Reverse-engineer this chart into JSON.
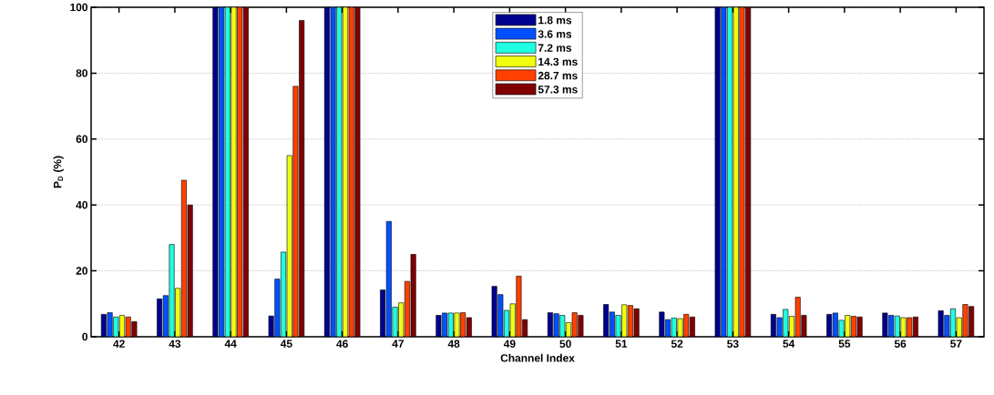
{
  "chart_data": {
    "type": "bar",
    "xlabel": "Channel Index",
    "ylabel": "P$_{D}$ (%)",
    "categories": [
      "42",
      "43",
      "44",
      "45",
      "46",
      "47",
      "48",
      "49",
      "50",
      "51",
      "52",
      "53",
      "54",
      "55",
      "56",
      "57"
    ],
    "series": [
      {
        "name": "1.8 ms",
        "color": "#00008f",
        "values": [
          6.8,
          11.5,
          100,
          6.3,
          100,
          14.2,
          6.5,
          15.3,
          7.3,
          9.8,
          7.5,
          100,
          6.8,
          6.8,
          7.2,
          7.9
        ]
      },
      {
        "name": "3.6 ms",
        "color": "#0050ff",
        "values": [
          7.3,
          12.5,
          100,
          17.5,
          100,
          35,
          7.2,
          12.8,
          7,
          7.5,
          5.2,
          100,
          5.8,
          7.2,
          6.5,
          6.5
        ]
      },
      {
        "name": "7.2 ms",
        "color": "#20ffe0",
        "values": [
          6,
          28,
          100,
          25.7,
          100,
          9,
          7.2,
          8,
          6.5,
          6.5,
          5.7,
          100,
          8.3,
          5,
          6.3,
          8.5
        ]
      },
      {
        "name": "14.3 ms",
        "color": "#f0ff10",
        "values": [
          6.5,
          14.7,
          100,
          55,
          100,
          10.3,
          7.2,
          10,
          4.3,
          9.7,
          5.5,
          100,
          6.2,
          6.5,
          5.8,
          5.8
        ]
      },
      {
        "name": "28.7 ms",
        "color": "#ff4000",
        "values": [
          6,
          47.5,
          100,
          76,
          100,
          16.8,
          7.3,
          18.4,
          7.3,
          9.5,
          6.8,
          100,
          12,
          6.2,
          5.8,
          9.8
        ]
      },
      {
        "name": "57.3 ms",
        "color": "#800000",
        "values": [
          4.6,
          40,
          100,
          96,
          100,
          25,
          5.8,
          5.2,
          6.5,
          8.5,
          6,
          100,
          6.5,
          6,
          6,
          9.2
        ]
      }
    ],
    "ylim": [
      0,
      100
    ],
    "yticks": [
      0,
      20,
      40,
      60,
      80,
      100
    ],
    "grid": "y",
    "legend": "top"
  }
}
